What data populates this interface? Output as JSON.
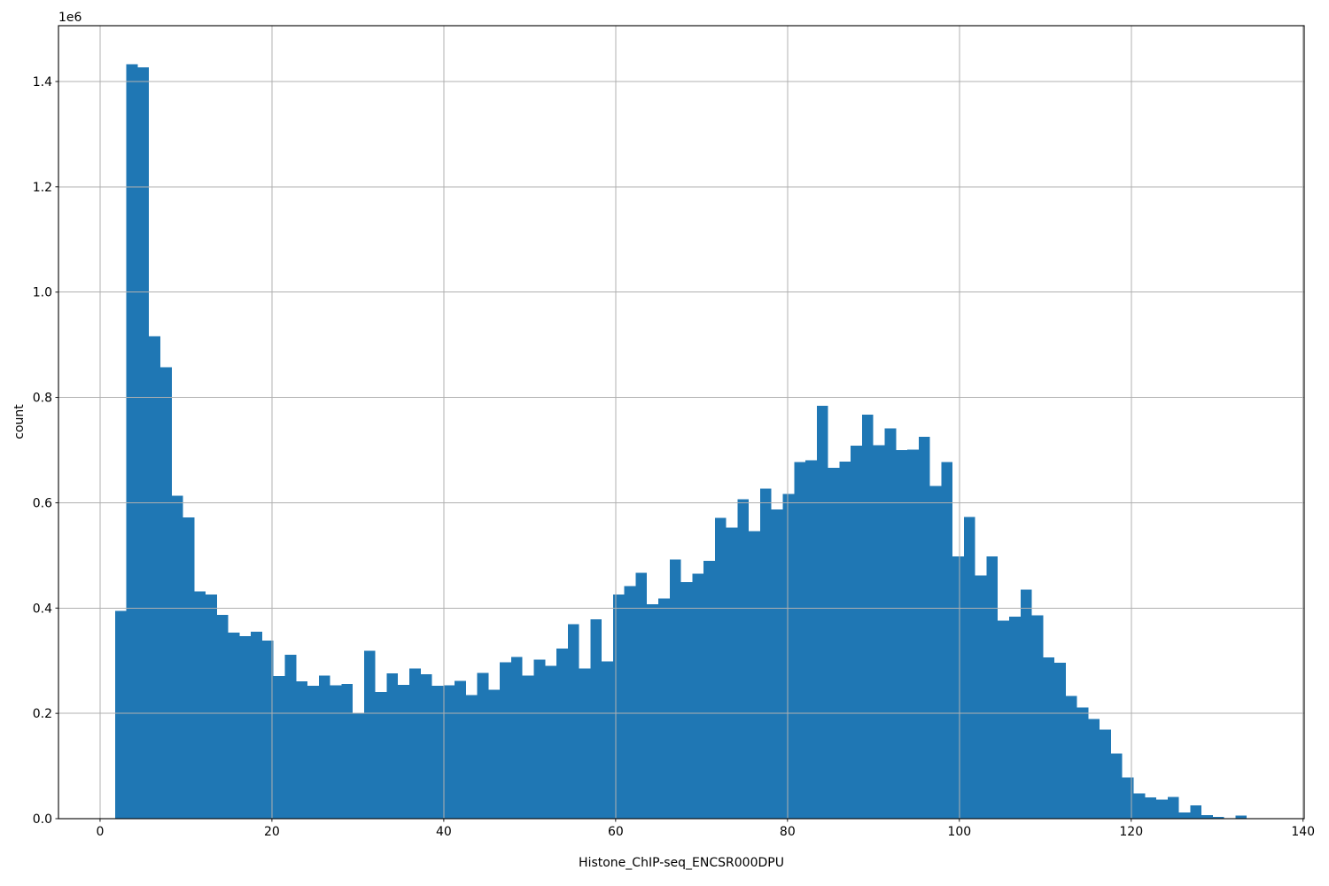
{
  "figure": {
    "background": "#ffffff"
  },
  "chart_data": {
    "type": "bar",
    "subtype": "histogram",
    "title": "",
    "xlabel": "Histone_ChIP-seq_ENCSR000DPU",
    "ylabel": "count",
    "offset_text": "1e6",
    "grid": true,
    "legend": null,
    "bar_color": "#1f77b4",
    "grid_color": "#b0b0b0",
    "spine_color": "#000000",
    "tick_color": "#000000",
    "tick_label_color": "#000000",
    "xlim": [
      -4.84,
      140.13
    ],
    "ylim_1e6": [
      0,
      1.506
    ],
    "x_ticks": [
      0,
      20,
      40,
      60,
      80,
      100,
      120,
      140
    ],
    "y_ticks_1e6": [
      0.0,
      0.2,
      0.4,
      0.6,
      0.8,
      1.0,
      1.2,
      1.4
    ],
    "y_tick_labels": [
      "0.0",
      "0.2",
      "0.4",
      "0.6",
      "0.8",
      "1.0",
      "1.2",
      "1.4"
    ],
    "bin_start": 1.75,
    "bin_width": 1.317,
    "counts_1e6": [
      0.395,
      1.433,
      1.427,
      0.916,
      0.857,
      0.613,
      0.572,
      0.432,
      0.426,
      0.387,
      0.353,
      0.347,
      0.355,
      0.338,
      0.271,
      0.311,
      0.261,
      0.252,
      0.272,
      0.253,
      0.256,
      0.2,
      0.319,
      0.241,
      0.276,
      0.254,
      0.285,
      0.274,
      0.252,
      0.253,
      0.262,
      0.235,
      0.277,
      0.245,
      0.297,
      0.307,
      0.272,
      0.302,
      0.29,
      0.323,
      0.369,
      0.285,
      0.379,
      0.299,
      0.426,
      0.442,
      0.467,
      0.407,
      0.418,
      0.492,
      0.449,
      0.465,
      0.49,
      0.571,
      0.553,
      0.607,
      0.546,
      0.627,
      0.587,
      0.617,
      0.677,
      0.681,
      0.784,
      0.666,
      0.678,
      0.708,
      0.767,
      0.709,
      0.741,
      0.7,
      0.701,
      0.725,
      0.632,
      0.677,
      0.498,
      0.573,
      0.462,
      0.498,
      0.376,
      0.384,
      0.435,
      0.386,
      0.306,
      0.296,
      0.233,
      0.211,
      0.189,
      0.169,
      0.124,
      0.078,
      0.048,
      0.04,
      0.036,
      0.041,
      0.012,
      0.025,
      0.007,
      0.003,
      0.001,
      0.006
    ]
  }
}
